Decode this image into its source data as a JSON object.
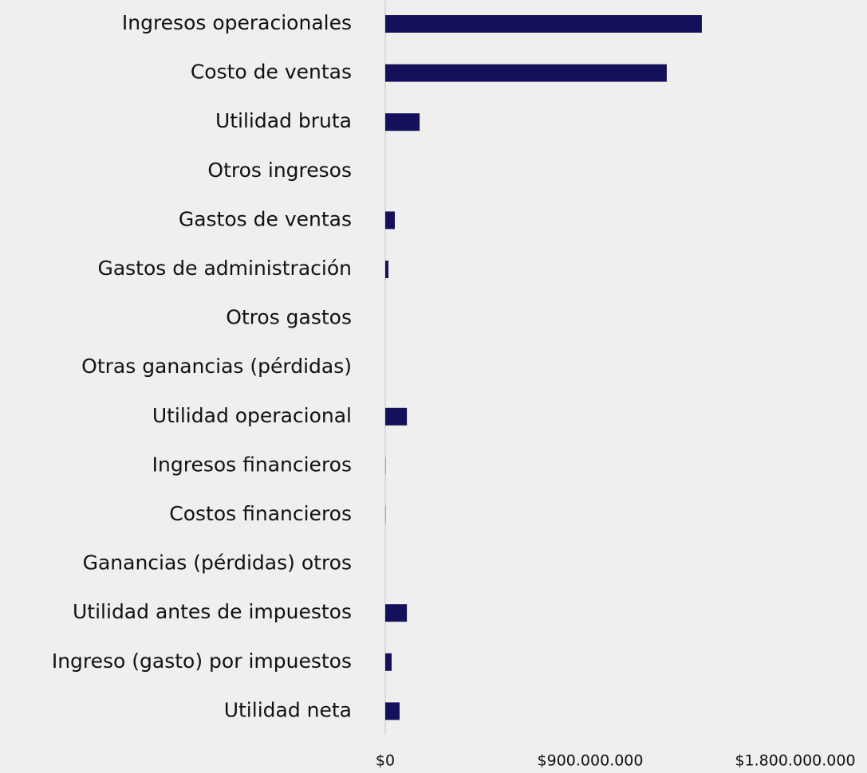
{
  "chart_data": {
    "type": "bar",
    "orientation": "horizontal",
    "categories": [
      "Ingresos operacionales",
      "Costo de ventas",
      "Utilidad bruta",
      "Otros ingresos",
      "Gastos de ventas",
      "Gastos de administración",
      "Otros gastos",
      "Otras ganancias (pérdidas)",
      "Utilidad operacional",
      "Ingresos financieros",
      "Costos financieros",
      "Ganancias (pérdidas) otros",
      "Utilidad antes de impuestos",
      "Ingreso (gasto) por impuestos",
      "Utilidad neta"
    ],
    "values": [
      1390000000,
      1236000000,
      151000000,
      0,
      42000000,
      14000000,
      0,
      0,
      95000000,
      1000000,
      1000000,
      0,
      95000000,
      28000000,
      63000000
    ],
    "color": "#15105a",
    "xlim": [
      0,
      1800000000
    ],
    "xticks": [
      {
        "value": 0,
        "label": "$0"
      },
      {
        "value": 900000000,
        "label": "$900.000.000"
      },
      {
        "value": 1800000000,
        "label": "$1.800.000.000"
      }
    ],
    "grid": false
  }
}
